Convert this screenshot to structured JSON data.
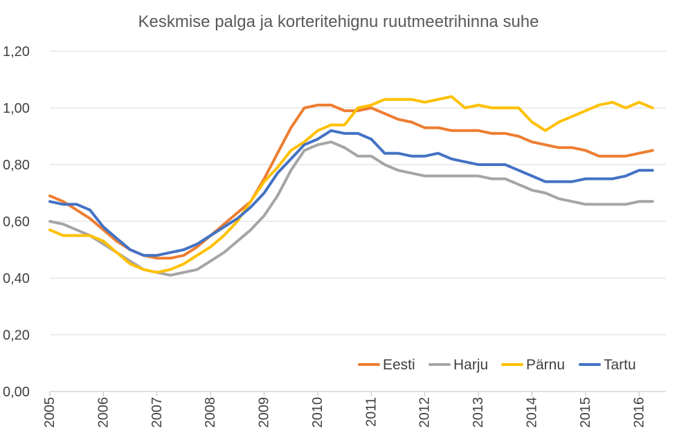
{
  "chart_data": {
    "type": "line",
    "title": "Keskmise palga ja korteritehignu ruutmeetrihinna suhe",
    "xlabel": "",
    "ylabel": "",
    "ylim": [
      0,
      1.2
    ],
    "y_ticks": [
      "0,00",
      "0,20",
      "0,40",
      "0,60",
      "0,80",
      "1,00",
      "1,20"
    ],
    "x_ticks": [
      "2005",
      "2006",
      "2007",
      "2008",
      "2009",
      "2010",
      "2011",
      "2012",
      "2013",
      "2014",
      "2015",
      "2016"
    ],
    "x_range": [
      2005.0,
      2016.5
    ],
    "grid": "horizontal",
    "legend_position": "bottom-right",
    "x": [
      2005.0,
      2005.25,
      2005.5,
      2005.75,
      2006.0,
      2006.25,
      2006.5,
      2006.75,
      2007.0,
      2007.25,
      2007.5,
      2007.75,
      2008.0,
      2008.25,
      2008.5,
      2008.75,
      2009.0,
      2009.25,
      2009.5,
      2009.75,
      2010.0,
      2010.25,
      2010.5,
      2010.75,
      2011.0,
      2011.25,
      2011.5,
      2011.75,
      2012.0,
      2012.25,
      2012.5,
      2012.75,
      2013.0,
      2013.25,
      2013.5,
      2013.75,
      2014.0,
      2014.25,
      2014.5,
      2014.75,
      2015.0,
      2015.25,
      2015.5,
      2015.75,
      2016.0,
      2016.25
    ],
    "series": [
      {
        "name": "Eesti",
        "color": "#ED7D31",
        "values": [
          0.69,
          0.67,
          0.64,
          0.61,
          0.57,
          0.53,
          0.5,
          0.48,
          0.47,
          0.47,
          0.48,
          0.51,
          0.55,
          0.59,
          0.63,
          0.67,
          0.75,
          0.84,
          0.93,
          1.0,
          1.01,
          1.01,
          0.99,
          0.99,
          1.0,
          0.98,
          0.96,
          0.95,
          0.93,
          0.93,
          0.92,
          0.92,
          0.92,
          0.91,
          0.91,
          0.9,
          0.88,
          0.87,
          0.86,
          0.86,
          0.85,
          0.83,
          0.83,
          0.83,
          0.84,
          0.85
        ]
      },
      {
        "name": "Harju",
        "color": "#A5A5A5",
        "values": [
          0.6,
          0.59,
          0.57,
          0.55,
          0.52,
          0.49,
          0.46,
          0.43,
          0.42,
          0.41,
          0.42,
          0.43,
          0.46,
          0.49,
          0.53,
          0.57,
          0.62,
          0.69,
          0.78,
          0.85,
          0.87,
          0.88,
          0.86,
          0.83,
          0.83,
          0.8,
          0.78,
          0.77,
          0.76,
          0.76,
          0.76,
          0.76,
          0.76,
          0.75,
          0.75,
          0.73,
          0.71,
          0.7,
          0.68,
          0.67,
          0.66,
          0.66,
          0.66,
          0.66,
          0.67,
          0.67
        ]
      },
      {
        "name": "Pärnu",
        "color": "#FFC000",
        "values": [
          0.57,
          0.55,
          0.55,
          0.55,
          0.53,
          0.49,
          0.45,
          0.43,
          0.42,
          0.43,
          0.45,
          0.48,
          0.51,
          0.55,
          0.6,
          0.67,
          0.74,
          0.79,
          0.85,
          0.88,
          0.92,
          0.94,
          0.94,
          1.0,
          1.01,
          1.03,
          1.03,
          1.03,
          1.02,
          1.03,
          1.04,
          1.0,
          1.01,
          1.0,
          1.0,
          1.0,
          0.95,
          0.92,
          0.95,
          0.97,
          0.99,
          1.01,
          1.02,
          1.0,
          1.02,
          1.0
        ]
      },
      {
        "name": "Tartu",
        "color": "#4472C4",
        "values": [
          0.67,
          0.66,
          0.66,
          0.64,
          0.58,
          0.54,
          0.5,
          0.48,
          0.48,
          0.49,
          0.5,
          0.52,
          0.55,
          0.58,
          0.61,
          0.65,
          0.7,
          0.77,
          0.82,
          0.87,
          0.89,
          0.92,
          0.91,
          0.91,
          0.89,
          0.84,
          0.84,
          0.83,
          0.83,
          0.84,
          0.82,
          0.81,
          0.8,
          0.8,
          0.8,
          0.78,
          0.76,
          0.74,
          0.74,
          0.74,
          0.75,
          0.75,
          0.75,
          0.76,
          0.78,
          0.78
        ]
      }
    ]
  }
}
